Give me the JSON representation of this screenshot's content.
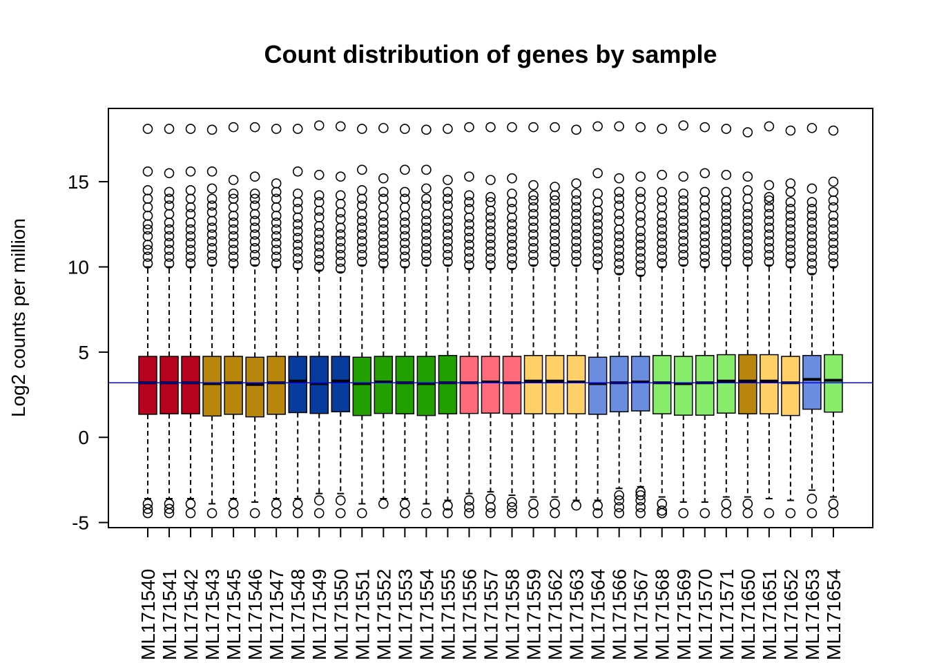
{
  "chart_data": {
    "type": "boxplot",
    "title": "Count distribution of genes by sample",
    "xlabel": "",
    "ylabel": "Log2 counts per million",
    "ylim": [
      -5.3,
      19.3
    ],
    "yticks": [
      -5,
      0,
      5,
      10,
      15
    ],
    "reference_line": {
      "y": 3.2,
      "color": "#0000ff"
    },
    "colors": {
      "red": "#b8001f",
      "gold": "#b8860b",
      "blue": "#083c9c",
      "green": "#22a000",
      "pink": "#ff6b7b",
      "lightorange": "#ffd068",
      "lightblue": "#6b8de0",
      "lightgreen": "#86ec6a"
    },
    "samples": [
      {
        "label": "ML171540",
        "color": "red",
        "q1": 1.35,
        "median": 3.2,
        "q3": 4.75,
        "whisker_low": -3.6,
        "whisker_high": 10.0,
        "outliers_high": [
          10.2,
          10.6,
          11.0,
          11.3,
          11.8,
          12.2,
          12.5,
          13.0,
          13.5,
          14.0,
          14.5,
          15.6,
          18.1
        ],
        "outliers_low": [
          -3.9,
          -4.2,
          -4.45
        ]
      },
      {
        "label": "ML171541",
        "color": "red",
        "q1": 1.38,
        "median": 3.2,
        "q3": 4.75,
        "whisker_low": -3.6,
        "whisker_high": 10.0,
        "outliers_high": [
          10.2,
          10.6,
          11.0,
          11.4,
          11.8,
          12.2,
          12.6,
          13.1,
          13.6,
          14.0,
          14.4,
          15.5,
          18.1
        ],
        "outliers_low": [
          -3.9,
          -4.2,
          -4.45
        ]
      },
      {
        "label": "ML171542",
        "color": "red",
        "q1": 1.38,
        "median": 3.2,
        "q3": 4.75,
        "whisker_low": -3.6,
        "whisker_high": 10.0,
        "outliers_high": [
          10.2,
          10.6,
          11.0,
          11.4,
          11.8,
          12.2,
          12.6,
          13.1,
          13.5,
          14.0,
          14.5,
          15.6,
          18.1
        ],
        "outliers_low": [
          -3.9,
          -4.45
        ]
      },
      {
        "label": "ML171543",
        "color": "gold",
        "q1": 1.25,
        "median": 3.15,
        "q3": 4.75,
        "whisker_low": -3.9,
        "whisker_high": 10.1,
        "outliers_high": [
          10.3,
          10.7,
          11.1,
          11.5,
          11.9,
          12.3,
          12.7,
          13.2,
          13.6,
          14.0,
          14.6,
          15.6,
          18.05
        ],
        "outliers_low": [
          -4.45
        ]
      },
      {
        "label": "ML171545",
        "color": "gold",
        "q1": 1.35,
        "median": 3.2,
        "q3": 4.75,
        "whisker_low": -3.6,
        "whisker_high": 10.0,
        "outliers_high": [
          10.2,
          10.6,
          11.0,
          11.4,
          11.8,
          12.2,
          12.6,
          13.0,
          13.5,
          14.0,
          14.3,
          15.1,
          18.2
        ],
        "outliers_low": [
          -3.9,
          -4.45
        ]
      },
      {
        "label": "ML171546",
        "color": "gold",
        "q1": 1.2,
        "median": 3.1,
        "q3": 4.7,
        "whisker_low": -3.8,
        "whisker_high": 10.1,
        "outliers_high": [
          10.3,
          10.7,
          11.1,
          11.5,
          11.9,
          12.3,
          12.7,
          13.1,
          13.6,
          14.0,
          14.3,
          15.3,
          18.2
        ],
        "outliers_low": [
          -4.45
        ]
      },
      {
        "label": "ML171547",
        "color": "gold",
        "q1": 1.35,
        "median": 3.2,
        "q3": 4.75,
        "whisker_low": -3.6,
        "whisker_high": 10.0,
        "outliers_high": [
          10.2,
          10.6,
          11.0,
          11.4,
          11.8,
          12.2,
          12.6,
          13.0,
          13.5,
          14.0,
          14.4,
          14.9,
          18.1
        ],
        "outliers_low": [
          -3.9,
          -4.45
        ]
      },
      {
        "label": "ML171548",
        "color": "blue",
        "q1": 1.45,
        "median": 3.3,
        "q3": 4.75,
        "whisker_low": -3.6,
        "whisker_high": 9.9,
        "outliers_high": [
          10.1,
          10.5,
          10.9,
          11.3,
          11.7,
          12.1,
          12.5,
          12.9,
          13.4,
          13.8,
          14.3,
          15.6,
          18.1
        ],
        "outliers_low": [
          -3.9,
          -4.45
        ]
      },
      {
        "label": "ML171549",
        "color": "blue",
        "q1": 1.4,
        "median": 3.15,
        "q3": 4.75,
        "whisker_low": -3.3,
        "whisker_high": 9.8,
        "outliers_high": [
          10.0,
          10.4,
          10.8,
          11.2,
          11.6,
          12.0,
          12.4,
          12.9,
          13.3,
          13.8,
          14.2,
          15.4,
          18.3
        ],
        "outliers_low": [
          -3.7,
          -4.45
        ]
      },
      {
        "label": "ML171550",
        "color": "blue",
        "q1": 1.5,
        "median": 3.3,
        "q3": 4.75,
        "whisker_low": -3.3,
        "whisker_high": 9.7,
        "outliers_high": [
          9.9,
          10.3,
          10.7,
          11.1,
          11.5,
          11.9,
          12.3,
          12.8,
          13.2,
          13.7,
          14.2,
          15.3,
          18.25
        ],
        "outliers_low": [
          -3.7,
          -4.45
        ]
      },
      {
        "label": "ML171551",
        "color": "green",
        "q1": 1.28,
        "median": 3.15,
        "q3": 4.7,
        "whisker_low": -3.9,
        "whisker_high": 10.1,
        "outliers_high": [
          10.3,
          10.7,
          11.1,
          11.5,
          11.9,
          12.3,
          12.7,
          13.1,
          13.6,
          14.0,
          14.5,
          15.7,
          18.1
        ],
        "outliers_low": [
          -4.45
        ]
      },
      {
        "label": "ML171552",
        "color": "green",
        "q1": 1.4,
        "median": 3.25,
        "q3": 4.75,
        "whisker_low": -3.6,
        "whisker_high": 10.0,
        "outliers_high": [
          10.2,
          10.6,
          11.0,
          11.4,
          11.8,
          12.2,
          12.6,
          13.0,
          13.5,
          14.0,
          14.4,
          15.2,
          18.15
        ],
        "outliers_low": [
          -3.9
        ]
      },
      {
        "label": "ML171553",
        "color": "green",
        "q1": 1.38,
        "median": 3.2,
        "q3": 4.75,
        "whisker_low": -3.6,
        "whisker_high": 10.0,
        "outliers_high": [
          10.2,
          10.6,
          11.0,
          11.4,
          11.8,
          12.2,
          12.6,
          13.0,
          13.5,
          14.0,
          14.4,
          15.7,
          18.1
        ],
        "outliers_low": [
          -3.9,
          -4.45
        ]
      },
      {
        "label": "ML171554",
        "color": "green",
        "q1": 1.28,
        "median": 3.15,
        "q3": 4.75,
        "whisker_low": -3.9,
        "whisker_high": 10.1,
        "outliers_high": [
          10.3,
          10.7,
          11.1,
          11.5,
          11.9,
          12.3,
          12.7,
          13.1,
          13.6,
          14.0,
          14.6,
          15.7,
          18.05
        ],
        "outliers_low": [
          -4.45
        ]
      },
      {
        "label": "ML171555",
        "color": "green",
        "q1": 1.38,
        "median": 3.2,
        "q3": 4.8,
        "whisker_low": -3.7,
        "whisker_high": 10.1,
        "outliers_high": [
          10.3,
          10.7,
          11.1,
          11.5,
          11.9,
          12.3,
          12.7,
          13.1,
          13.6,
          14.0,
          14.4,
          15.1,
          18.1
        ],
        "outliers_low": [
          -4.0,
          -4.45
        ]
      },
      {
        "label": "ML171556",
        "color": "pink",
        "q1": 1.4,
        "median": 3.2,
        "q3": 4.75,
        "whisker_low": -3.3,
        "whisker_high": 9.9,
        "outliers_high": [
          10.1,
          10.5,
          10.9,
          11.3,
          11.7,
          12.1,
          12.5,
          12.9,
          13.4,
          13.8,
          14.2,
          15.3,
          18.2
        ],
        "outliers_low": [
          -3.7,
          -4.1,
          -4.45
        ]
      },
      {
        "label": "ML171557",
        "color": "pink",
        "q1": 1.42,
        "median": 3.25,
        "q3": 4.75,
        "whisker_low": -3.2,
        "whisker_high": 9.9,
        "outliers_high": [
          10.1,
          10.5,
          10.9,
          11.3,
          11.7,
          12.1,
          12.5,
          12.9,
          13.3,
          13.8,
          14.1,
          15.1,
          18.2
        ],
        "outliers_low": [
          -3.6,
          -4.1,
          -4.45
        ]
      },
      {
        "label": "ML171558",
        "color": "pink",
        "q1": 1.38,
        "median": 3.2,
        "q3": 4.75,
        "whisker_low": -3.4,
        "whisker_high": 9.9,
        "outliers_high": [
          10.1,
          10.5,
          10.9,
          11.3,
          11.7,
          12.1,
          12.5,
          12.9,
          13.4,
          13.8,
          14.3,
          15.2,
          18.2
        ],
        "outliers_low": [
          -3.8,
          -4.1,
          -4.45
        ]
      },
      {
        "label": "ML171559",
        "color": "lightorange",
        "q1": 1.38,
        "median": 3.3,
        "q3": 4.8,
        "whisker_low": -3.5,
        "whisker_high": 10.1,
        "outliers_high": [
          10.3,
          10.7,
          11.1,
          11.5,
          11.9,
          12.3,
          12.7,
          13.1,
          13.5,
          13.9,
          14.2,
          14.8,
          18.2
        ],
        "outliers_low": [
          -3.9,
          -4.45
        ]
      },
      {
        "label": "ML171562",
        "color": "lightorange",
        "q1": 1.38,
        "median": 3.3,
        "q3": 4.8,
        "whisker_low": -3.5,
        "whisker_high": 10.1,
        "outliers_high": [
          10.3,
          10.7,
          11.1,
          11.5,
          11.9,
          12.3,
          12.7,
          13.1,
          13.5,
          13.9,
          14.2,
          14.7,
          18.2
        ],
        "outliers_low": [
          -3.9,
          -4.45
        ]
      },
      {
        "label": "ML171563",
        "color": "lightorange",
        "q1": 1.38,
        "median": 3.25,
        "q3": 4.8,
        "whisker_low": -3.7,
        "whisker_high": 10.1,
        "outliers_high": [
          10.3,
          10.7,
          11.1,
          11.5,
          11.9,
          12.3,
          12.7,
          13.1,
          13.5,
          13.9,
          14.3,
          14.9,
          18.05
        ],
        "outliers_low": [
          -4.0
        ]
      },
      {
        "label": "ML171564",
        "color": "lightblue",
        "q1": 1.35,
        "median": 3.15,
        "q3": 4.7,
        "whisker_low": -3.7,
        "whisker_high": 9.9,
        "outliers_high": [
          10.1,
          10.5,
          10.9,
          11.3,
          11.7,
          12.1,
          12.5,
          12.9,
          13.3,
          13.8,
          14.3,
          15.5,
          18.25
        ],
        "outliers_low": [
          -4.0,
          -4.45
        ]
      },
      {
        "label": "ML171566",
        "color": "lightblue",
        "q1": 1.5,
        "median": 3.2,
        "q3": 4.75,
        "whisker_low": -3.0,
        "whisker_high": 9.6,
        "outliers_high": [
          9.8,
          10.2,
          10.6,
          11.0,
          11.4,
          11.8,
          12.2,
          12.7,
          13.1,
          13.6,
          14.0,
          14.4,
          15.2,
          18.25
        ],
        "outliers_low": [
          -3.4,
          -3.7,
          -4.1,
          -4.45
        ]
      },
      {
        "label": "ML171567",
        "color": "lightblue",
        "q1": 1.55,
        "median": 3.25,
        "q3": 4.75,
        "whisker_low": -2.9,
        "whisker_high": 9.5,
        "outliers_high": [
          9.7,
          10.1,
          10.5,
          10.9,
          11.3,
          11.7,
          12.1,
          12.6,
          13.0,
          13.5,
          14.0,
          14.4,
          15.3,
          18.2
        ],
        "outliers_low": [
          -3.2,
          -3.4,
          -3.7,
          -4.1,
          -4.45
        ]
      },
      {
        "label": "ML171568",
        "color": "lightgreen",
        "q1": 1.38,
        "median": 3.2,
        "q3": 4.8,
        "whisker_low": -3.5,
        "whisker_high": 10.0,
        "outliers_high": [
          10.2,
          10.6,
          11.0,
          11.4,
          11.8,
          12.2,
          12.6,
          13.0,
          13.5,
          13.9,
          14.4,
          15.4,
          18.1
        ],
        "outliers_low": [
          -3.9,
          -4.3,
          -4.45
        ]
      },
      {
        "label": "ML171569",
        "color": "lightgreen",
        "q1": 1.3,
        "median": 3.15,
        "q3": 4.75,
        "whisker_low": -3.8,
        "whisker_high": 10.1,
        "outliers_high": [
          10.3,
          10.7,
          11.1,
          11.5,
          11.9,
          12.3,
          12.7,
          13.1,
          13.5,
          13.9,
          14.3,
          15.3,
          18.3
        ],
        "outliers_low": [
          -4.45
        ]
      },
      {
        "label": "ML171570",
        "color": "lightgreen",
        "q1": 1.3,
        "median": 3.2,
        "q3": 4.8,
        "whisker_low": -3.8,
        "whisker_high": 10.0,
        "outliers_high": [
          10.2,
          10.6,
          11.0,
          11.4,
          11.8,
          12.2,
          12.6,
          13.0,
          13.5,
          13.9,
          14.4,
          15.5,
          18.2
        ],
        "outliers_low": [
          -4.45
        ]
      },
      {
        "label": "ML171571",
        "color": "lightgreen",
        "q1": 1.42,
        "median": 3.3,
        "q3": 4.85,
        "whisker_low": -3.5,
        "whisker_high": 10.1,
        "outliers_high": [
          10.3,
          10.7,
          11.1,
          11.5,
          11.9,
          12.3,
          12.7,
          13.1,
          13.5,
          13.9,
          14.4,
          15.4,
          18.1
        ],
        "outliers_low": [
          -3.9,
          -4.45
        ]
      },
      {
        "label": "ML171650",
        "color": "gold",
        "q1": 1.38,
        "median": 3.3,
        "q3": 4.85,
        "whisker_low": -3.5,
        "whisker_high": 10.1,
        "outliers_high": [
          10.3,
          10.7,
          11.1,
          11.5,
          11.9,
          12.3,
          12.7,
          13.1,
          13.5,
          14.0,
          14.5,
          15.3,
          17.9
        ],
        "outliers_low": [
          -3.9,
          -4.45
        ]
      },
      {
        "label": "ML171651",
        "color": "lightorange",
        "q1": 1.38,
        "median": 3.3,
        "q3": 4.85,
        "whisker_low": -3.6,
        "whisker_high": 10.1,
        "outliers_high": [
          10.3,
          10.7,
          11.1,
          11.5,
          11.9,
          12.3,
          12.7,
          13.1,
          13.5,
          13.9,
          14.1,
          14.8,
          18.25
        ],
        "outliers_low": [
          -4.45
        ]
      },
      {
        "label": "ML171652",
        "color": "lightorange",
        "q1": 1.28,
        "median": 3.2,
        "q3": 4.75,
        "whisker_low": -3.7,
        "whisker_high": 10.0,
        "outliers_high": [
          10.2,
          10.6,
          11.0,
          11.4,
          11.8,
          12.2,
          12.6,
          13.0,
          13.4,
          13.8,
          14.4,
          14.9,
          18.0
        ],
        "outliers_low": [
          -4.45
        ]
      },
      {
        "label": "ML171653",
        "color": "lightblue",
        "q1": 1.65,
        "median": 3.4,
        "q3": 4.8,
        "whisker_low": -3.1,
        "whisker_high": 9.6,
        "outliers_high": [
          9.8,
          10.2,
          10.6,
          11.0,
          11.4,
          11.8,
          12.2,
          12.6,
          13.0,
          13.4,
          13.8,
          14.6,
          18.15
        ],
        "outliers_low": [
          -3.6,
          -4.45
        ]
      },
      {
        "label": "ML171654",
        "color": "lightgreen",
        "q1": 1.48,
        "median": 3.35,
        "q3": 4.85,
        "whisker_low": -3.5,
        "whisker_high": 10.0,
        "outliers_high": [
          10.2,
          10.6,
          11.0,
          11.4,
          11.8,
          12.2,
          12.6,
          13.0,
          13.5,
          13.9,
          14.4,
          15.0,
          18.0
        ],
        "outliers_low": [
          -3.9,
          -4.45
        ]
      }
    ]
  }
}
